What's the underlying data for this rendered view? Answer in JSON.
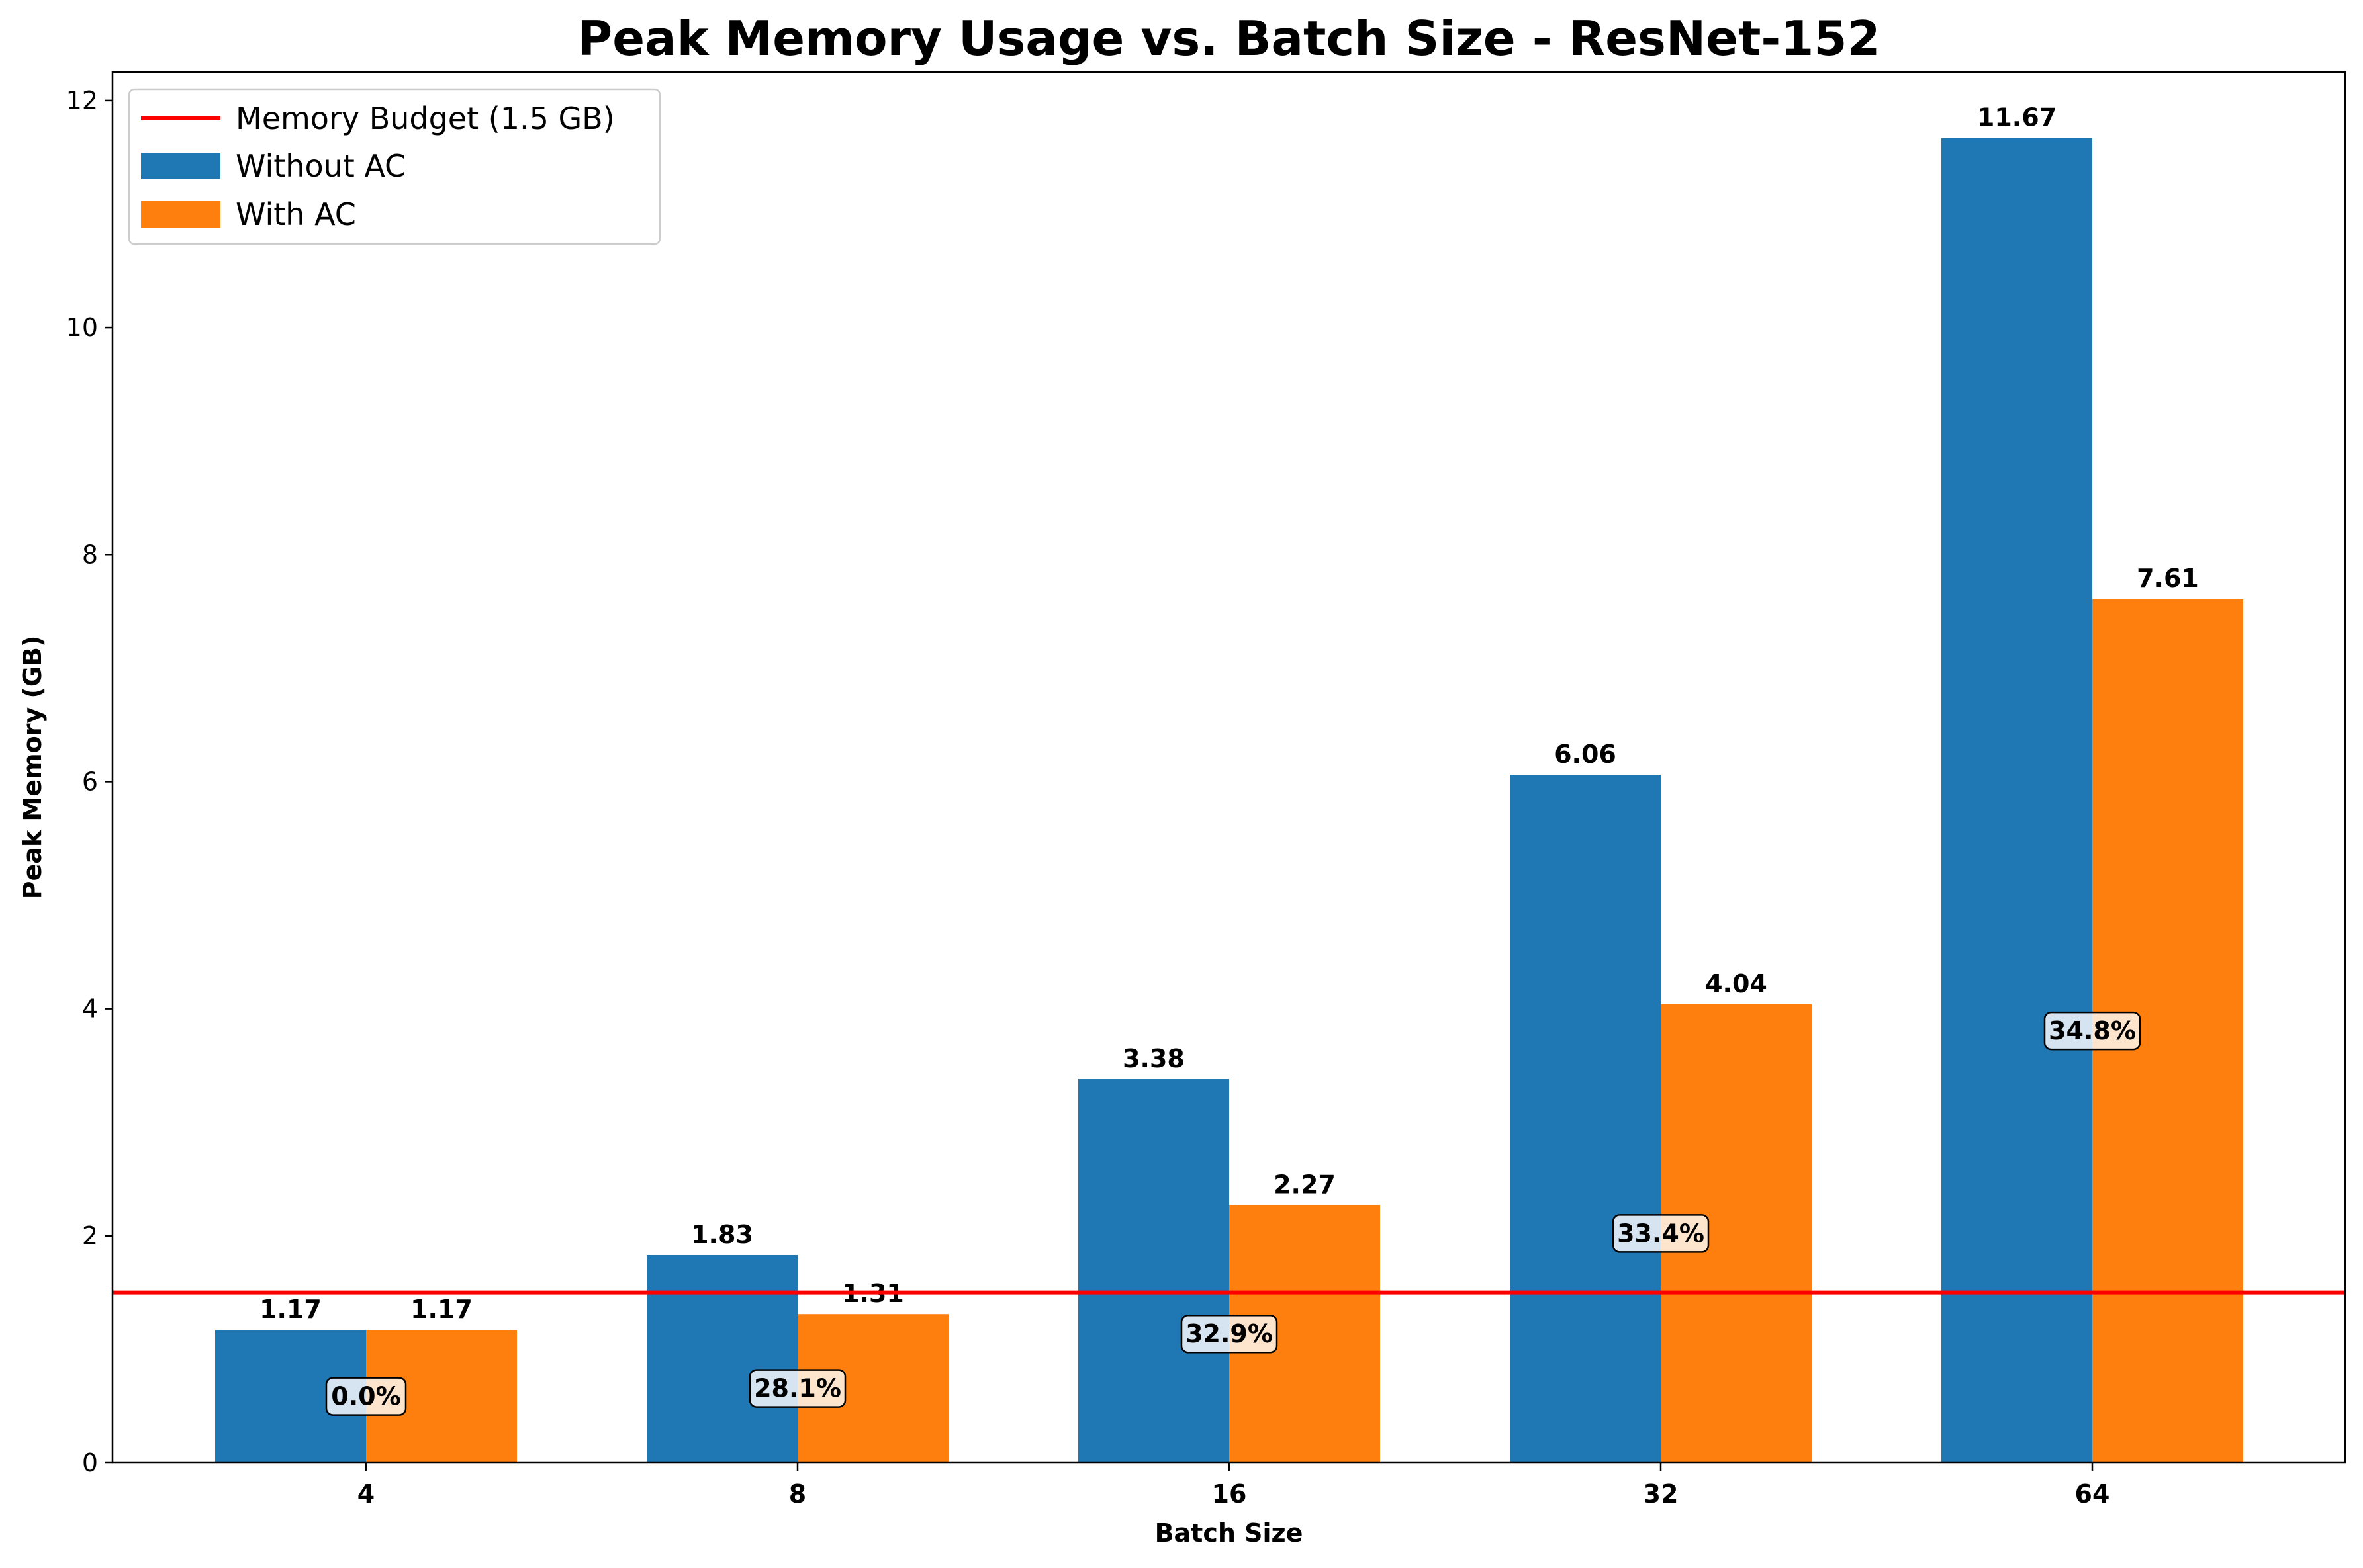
{
  "chart_data": {
    "type": "bar",
    "title": "Peak Memory Usage vs. Batch Size - ResNet-152",
    "xlabel": "Batch Size",
    "ylabel": "Peak Memory (GB)",
    "categories": [
      "4",
      "8",
      "16",
      "32",
      "64"
    ],
    "ylim": [
      0,
      12.25
    ],
    "yticks": [
      0,
      2,
      4,
      6,
      8,
      10,
      12
    ],
    "series": [
      {
        "name": "Without AC",
        "color": "#1f77b4",
        "values": [
          1.17,
          1.83,
          3.38,
          6.06,
          11.67
        ],
        "value_labels": [
          "1.17",
          "1.83",
          "3.38",
          "6.06",
          "11.67"
        ]
      },
      {
        "name": "With AC",
        "color": "#ff7f0e",
        "values": [
          1.17,
          1.31,
          2.27,
          4.04,
          7.61
        ],
        "value_labels": [
          "1.17",
          "1.31",
          "2.27",
          "4.04",
          "7.61"
        ]
      }
    ],
    "reduction_labels": [
      "0.0%",
      "28.1%",
      "32.9%",
      "33.4%",
      "34.8%"
    ],
    "reference_line": {
      "name": "Memory Budget (1.5 GB)",
      "value": 1.5,
      "color": "#ff0000"
    },
    "legend_position": "top-left",
    "grid": false
  }
}
